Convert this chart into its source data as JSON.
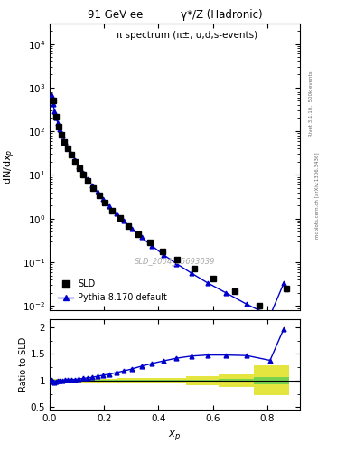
{
  "title_left": "91 GeV ee",
  "title_right": "γ*/Z (Hadronic)",
  "plot_title": "π spectrum (π±, u,d,s-events)",
  "ylabel_main": "dN/dx_p",
  "ylabel_ratio": "Ratio to SLD",
  "xlabel": "x_p",
  "watermark": "SLD_2004_S5693039",
  "right_label": "Rivet 3.1.10,  500k events",
  "right_label2": "mcplots.cern.ch [arXiv:1306.3436]",
  "sld_x": [
    0.012,
    0.023,
    0.033,
    0.043,
    0.054,
    0.066,
    0.079,
    0.093,
    0.108,
    0.124,
    0.141,
    0.16,
    0.181,
    0.204,
    0.229,
    0.258,
    0.29,
    0.326,
    0.368,
    0.415,
    0.468,
    0.53,
    0.6,
    0.68,
    0.77,
    0.87
  ],
  "sld_y": [
    500,
    220,
    130,
    85,
    58,
    41,
    29,
    20,
    14,
    10,
    7.2,
    5.0,
    3.4,
    2.3,
    1.55,
    1.02,
    0.67,
    0.44,
    0.28,
    0.18,
    0.115,
    0.072,
    0.043,
    0.022,
    0.01,
    0.025
  ],
  "sld_yerr": [
    30,
    12,
    7,
    5,
    3,
    2.5,
    1.8,
    1.2,
    0.9,
    0.7,
    0.5,
    0.35,
    0.25,
    0.17,
    0.12,
    0.08,
    0.05,
    0.035,
    0.022,
    0.015,
    0.01,
    0.006,
    0.004,
    0.002,
    0.001,
    0.003
  ],
  "pythia_x": [
    0.006,
    0.012,
    0.018,
    0.023,
    0.03,
    0.038,
    0.047,
    0.057,
    0.068,
    0.08,
    0.093,
    0.107,
    0.122,
    0.138,
    0.156,
    0.175,
    0.196,
    0.219,
    0.244,
    0.272,
    0.303,
    0.337,
    0.375,
    0.418,
    0.466,
    0.52,
    0.58,
    0.648,
    0.724,
    0.81,
    0.86
  ],
  "pythia_y": [
    680,
    430,
    290,
    210,
    155,
    110,
    80,
    58,
    42,
    31,
    22,
    16,
    11.5,
    8.2,
    5.8,
    4.1,
    2.85,
    1.95,
    1.32,
    0.88,
    0.58,
    0.375,
    0.24,
    0.15,
    0.093,
    0.057,
    0.034,
    0.02,
    0.011,
    0.006,
    0.033
  ],
  "ratio_x": [
    0.006,
    0.012,
    0.018,
    0.023,
    0.03,
    0.038,
    0.047,
    0.057,
    0.068,
    0.08,
    0.093,
    0.107,
    0.122,
    0.138,
    0.156,
    0.175,
    0.196,
    0.219,
    0.244,
    0.272,
    0.303,
    0.337,
    0.375,
    0.418,
    0.466,
    0.52,
    0.58,
    0.648,
    0.724,
    0.81,
    0.86
  ],
  "ratio_y": [
    1.02,
    0.98,
    0.97,
    0.98,
    0.99,
    1.0,
    1.0,
    1.01,
    1.01,
    1.02,
    1.02,
    1.03,
    1.04,
    1.05,
    1.06,
    1.08,
    1.1,
    1.12,
    1.15,
    1.18,
    1.22,
    1.27,
    1.32,
    1.37,
    1.42,
    1.46,
    1.48,
    1.48,
    1.47,
    1.38,
    1.97
  ],
  "yellow_edges": [
    0.0,
    0.25,
    0.5,
    0.62,
    0.75,
    0.88
  ],
  "yellow_lo": [
    0.97,
    0.96,
    0.92,
    0.88,
    0.72,
    0.68
  ],
  "yellow_hi": [
    1.03,
    1.04,
    1.08,
    1.12,
    1.28,
    1.32
  ],
  "green_edges": [
    0.0,
    0.25,
    0.5,
    0.62,
    0.75,
    0.88
  ],
  "green_lo": [
    0.985,
    0.985,
    0.985,
    0.975,
    0.93,
    0.9
  ],
  "green_hi": [
    1.015,
    1.015,
    1.015,
    1.025,
    1.07,
    1.1
  ],
  "sld_color": "#000000",
  "pythia_color": "#0000cc",
  "green_color": "#55cc55",
  "yellow_color": "#dddd00",
  "bg_color": "#ffffff",
  "ylim_main": [
    0.008,
    30000
  ],
  "ylim_ratio": [
    0.45,
    2.15
  ],
  "xlim": [
    0.0,
    0.92
  ]
}
